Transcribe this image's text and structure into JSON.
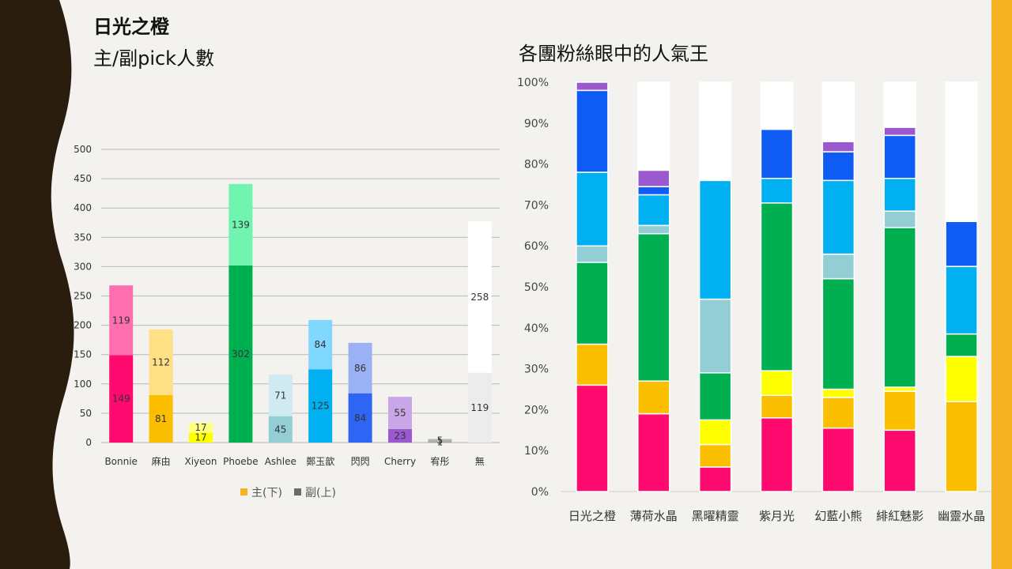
{
  "slide": {
    "title": "日光之橙",
    "subtitle": "主/副pick人數",
    "right_title": "各團粉絲眼中的人氣王"
  },
  "colors": {
    "bg": "#f3f2ef",
    "wave": "#2b1d0e",
    "stripe": "#f5b324"
  },
  "chart_data": [
    {
      "type": "bar",
      "stacked": true,
      "categories": [
        "Bonnie",
        "麻由",
        "Xiyeon",
        "Phoebe",
        "Ashlee",
        "鄭玉歆",
        "閃閃",
        "Cherry",
        "宥彤",
        "無"
      ],
      "series": [
        {
          "name": "主(下)",
          "values": [
            149,
            81,
            17,
            302,
            45,
            125,
            84,
            23,
            1,
            119
          ],
          "legend_color": "#f5b324"
        },
        {
          "name": "副(上)",
          "values": [
            119,
            112,
            17,
            139,
            71,
            84,
            86,
            55,
            5,
            258
          ],
          "legend_color": "#6b6b6b"
        }
      ],
      "bar_colors_main": [
        "#ff0a6e",
        "#fbbf00",
        "#ffff00",
        "#00b050",
        "#93ced4",
        "#00b0f0",
        "#2f65f5",
        "#9b59d0",
        "#8c8c8c",
        "#ececec"
      ],
      "bar_colors_sub": [
        "#ff6ead",
        "#ffe085",
        "#ffff80",
        "#70f5b0",
        "#cfeaf0",
        "#80d8ff",
        "#9ab2f5",
        "#c9a6e6",
        "#b3b3b3",
        "#ffffff"
      ],
      "ylim": [
        0,
        500
      ],
      "yticks": [
        0,
        50,
        100,
        150,
        200,
        250,
        300,
        350,
        400,
        450,
        500
      ],
      "grid": true,
      "legend": "bottom"
    },
    {
      "type": "bar",
      "stacked": true,
      "percent": true,
      "title": "各團粉絲眼中的人氣王",
      "categories": [
        "日光之橙",
        "薄荷水晶",
        "黑曜精靈",
        "紫月光",
        "幻藍小熊",
        "緋紅魅影",
        "幽靈水晶"
      ],
      "series": [
        {
          "color": "#ff0a6e",
          "values": [
            26,
            19,
            6,
            18,
            15.5,
            15,
            0
          ]
        },
        {
          "color": "#fbbf00",
          "values": [
            10,
            8,
            5.5,
            5.5,
            7.5,
            9.5,
            22
          ]
        },
        {
          "color": "#ffff00",
          "values": [
            0,
            0,
            6,
            6,
            2,
            1,
            11
          ]
        },
        {
          "color": "#00b050",
          "values": [
            20,
            36,
            11.5,
            41,
            27,
            39,
            5.5
          ]
        },
        {
          "color": "#93ced4",
          "values": [
            4,
            2,
            18,
            0,
            6,
            4,
            0
          ]
        },
        {
          "color": "#00b0f0",
          "values": [
            18,
            7.5,
            29,
            6,
            18,
            8,
            16.5
          ]
        },
        {
          "color": "#0f5cf5",
          "values": [
            20,
            2,
            0,
            12,
            7,
            10.5,
            11
          ]
        },
        {
          "color": "#9b59d0",
          "values": [
            2,
            4,
            0,
            0,
            2.5,
            2,
            0
          ]
        },
        {
          "color": "#ffffff",
          "values": [
            0,
            21.5,
            24,
            11.5,
            14.5,
            11,
            34
          ]
        }
      ],
      "ylim": [
        0,
        100
      ],
      "yticks": [
        "0%",
        "10%",
        "20%",
        "30%",
        "40%",
        "50%",
        "60%",
        "70%",
        "80%",
        "90%",
        "100%"
      ],
      "grid": false
    }
  ]
}
